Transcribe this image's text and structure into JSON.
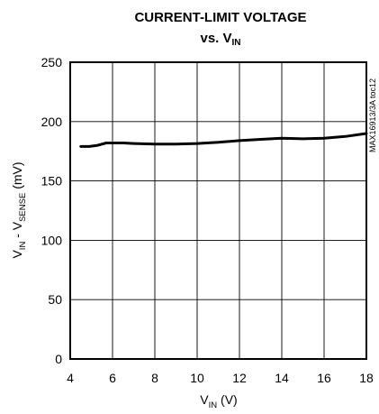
{
  "chart_data": {
    "type": "line",
    "title_line1": "CURRENT-LIMIT VOLTAGE",
    "title_line2_main": "vs. V",
    "title_line2_sub": "IN",
    "xlabel_main": "V",
    "xlabel_sub": "IN",
    "xlabel_unit": " (V)",
    "ylabel_pre": "V",
    "ylabel_sub1": "IN",
    "ylabel_mid": " - V",
    "ylabel_sub2": "SENSE",
    "ylabel_unit": " (mV)",
    "side_note": "MAX16913/3A toc12",
    "xlim": [
      4,
      18
    ],
    "ylim": [
      0,
      250
    ],
    "xticks": [
      "4",
      "6",
      "8",
      "10",
      "12",
      "14",
      "16",
      "18"
    ],
    "yticks": [
      "0",
      "50",
      "100",
      "150",
      "200",
      "250"
    ],
    "grid": true,
    "series": [
      {
        "x": [
          4.5,
          4.9,
          5.3,
          5.7,
          6.0,
          6.5,
          7.0,
          8.0,
          9.0,
          10.0,
          11.0,
          12.0,
          13.0,
          14.0,
          15.0,
          16.0,
          17.0,
          18.0
        ],
        "y": [
          179,
          179,
          180,
          182,
          182,
          182,
          181.5,
          181,
          181,
          181.5,
          182.5,
          184,
          185,
          186,
          185.5,
          186,
          187.5,
          190
        ]
      }
    ]
  }
}
